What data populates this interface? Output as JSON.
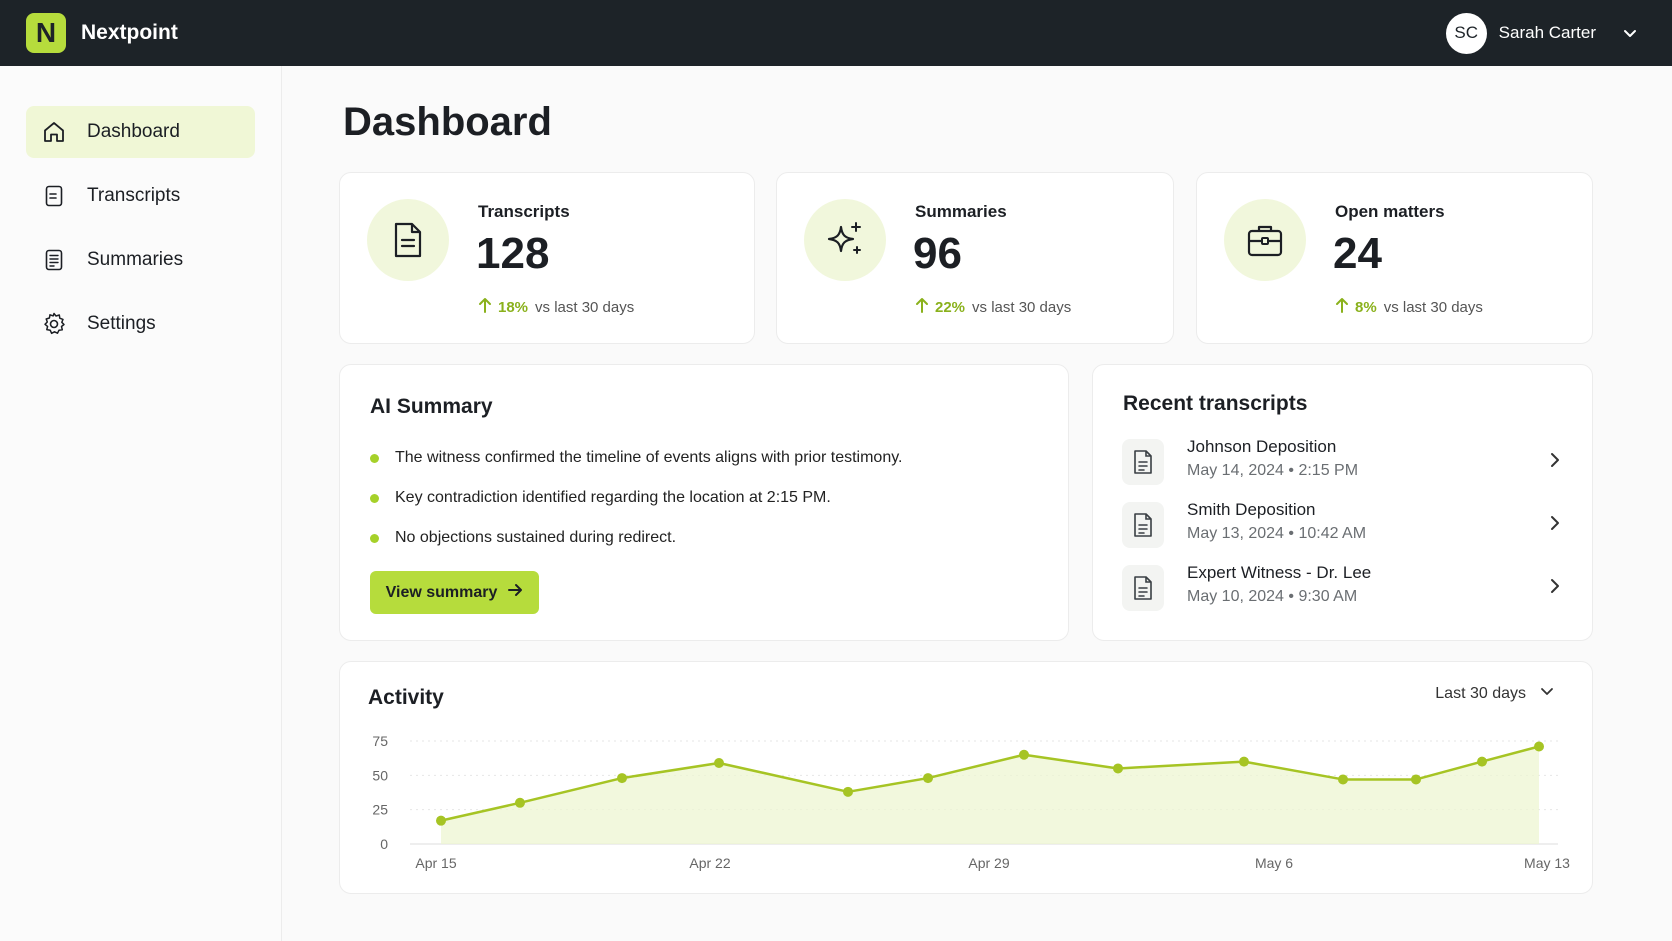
{
  "app": {
    "logo_letter": "N",
    "name": "Nextpoint"
  },
  "user": {
    "initials": "SC",
    "name": "Sarah Carter"
  },
  "sidebar": {
    "items": [
      {
        "label": "Dashboard",
        "icon": "home-icon",
        "active": true
      },
      {
        "label": "Transcripts",
        "icon": "document-icon",
        "active": false
      },
      {
        "label": "Summaries",
        "icon": "summary-icon",
        "active": false
      },
      {
        "label": "Settings",
        "icon": "gear-icon",
        "active": false
      }
    ]
  },
  "page": {
    "title": "Dashboard"
  },
  "stats": [
    {
      "label": "Transcripts",
      "value": "128",
      "change": "18%",
      "suffix": "vs last 30 days",
      "icon": "document-icon"
    },
    {
      "label": "Summaries",
      "value": "96",
      "change": "22%",
      "suffix": "vs last 30 days",
      "icon": "sparkles-icon"
    },
    {
      "label": "Open matters",
      "value": "24",
      "change": "8%",
      "suffix": "vs last 30 days",
      "icon": "briefcase-icon"
    }
  ],
  "ai_summary": {
    "title": "AI Summary",
    "bullets": [
      "The witness confirmed the timeline of events aligns with prior testimony.",
      "Key contradiction identified regarding the location at 2:15 PM.",
      "No objections sustained during redirect."
    ],
    "button_label": "View summary"
  },
  "recent": {
    "title": "Recent transcripts",
    "items": [
      {
        "name": "Johnson Deposition",
        "date": "May 14, 2024 • 2:15 PM"
      },
      {
        "name": "Smith Deposition",
        "date": "May 13, 2024 • 10:42 AM"
      },
      {
        "name": "Expert Witness - Dr. Lee",
        "date": "May 10, 2024 • 9:30 AM"
      }
    ]
  },
  "activity": {
    "title": "Activity",
    "range_label": "Last 30 days"
  },
  "colors": {
    "accent": "#b6dc3c",
    "accent_dark": "#a6c424",
    "topbar": "#1d2328",
    "positive": "#8ab11c"
  },
  "chart_data": {
    "type": "line",
    "title": "Activity",
    "xlabel": "",
    "ylabel": "",
    "ylim": [
      0,
      75
    ],
    "y_ticks": [
      "75",
      "50",
      "25",
      "0"
    ],
    "x_tick_labels": [
      "Apr 15",
      "Apr 22",
      "Apr 29",
      "May 6",
      "May 13"
    ],
    "x": [
      "Apr 15",
      "Apr 17",
      "Apr 20",
      "Apr 22",
      "Apr 25",
      "Apr 27",
      "Apr 29",
      "May 2",
      "May 4",
      "May 7",
      "May 9",
      "May 11",
      "May 13"
    ],
    "series": [
      {
        "values": [
          17,
          30,
          48,
          59,
          38,
          48,
          65,
          55,
          60,
          47,
          47,
          60,
          71
        ]
      }
    ],
    "area_fill": true,
    "grid": "horizontal-dotted",
    "legend": "none"
  }
}
